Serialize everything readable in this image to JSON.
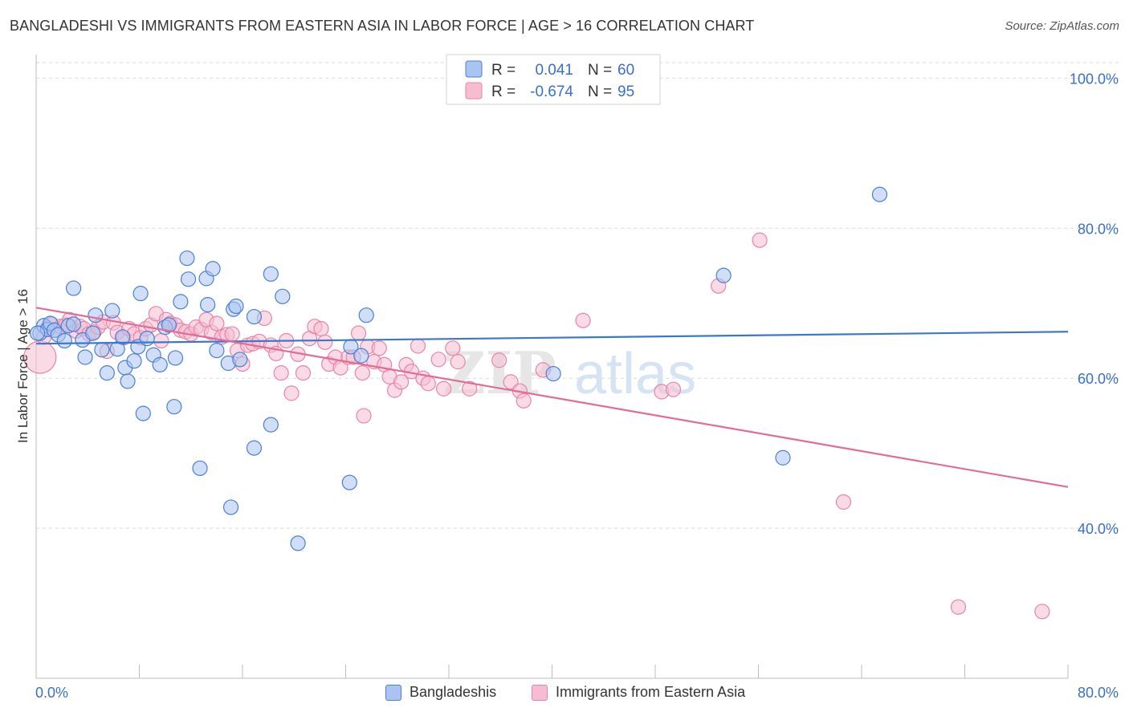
{
  "title": "BANGLADESHI VS IMMIGRANTS FROM EASTERN ASIA IN LABOR FORCE | AGE > 16 CORRELATION CHART",
  "source": "Source: ZipAtlas.com",
  "watermark": {
    "zip": "ZIP",
    "atlas": "atlas"
  },
  "colors": {
    "blue": "#4a7fd4",
    "blue_fill": "#a9c4f0",
    "blue_line": "#3a78d0",
    "pink": "#e884a6",
    "pink_fill": "#f6bdd0",
    "pink_line": "#e36b98",
    "axis_label": "#3a6fc9",
    "grid": "#d9d9d9",
    "text": "#333333"
  },
  "stats_legend": {
    "rows": [
      {
        "r_label": "R =",
        "r_value": "0.041",
        "n_label": "N =",
        "n_value": "60"
      },
      {
        "r_label": "R =",
        "r_value": "-0.674",
        "n_label": "N =",
        "n_value": "95"
      }
    ]
  },
  "bottom_legend": {
    "series1": "Bangladeshis",
    "series2": "Immigrants from Eastern Asia"
  },
  "chart_data": {
    "type": "scatter",
    "title": "BANGLADESHI VS IMMIGRANTS FROM EASTERN ASIA IN LABOR FORCE | AGE > 16 CORRELATION CHART",
    "xlabel": "",
    "ylabel": "In Labor Force | Age > 16",
    "xlim": [
      0,
      80
    ],
    "ylim": [
      20,
      104
    ],
    "x_tick_labels": [
      "0.0%",
      "80.0%"
    ],
    "y_ticks": [
      40,
      60,
      80,
      100
    ],
    "y_tick_labels": [
      "40.0%",
      "60.0%",
      "80.0%",
      "100.0%"
    ],
    "grid": true,
    "legend_position": "top-center",
    "series": [
      {
        "name": "Bangladeshis",
        "color": "#4a7fd4",
        "trend": {
          "x": [
            0,
            80
          ],
          "y": [
            64.6,
            66.2
          ]
        },
        "points": [
          [
            0.3,
            66
          ],
          [
            0.6,
            67
          ],
          [
            0.9,
            66.5
          ],
          [
            1.1,
            67.3
          ],
          [
            1.4,
            66.4
          ],
          [
            1.7,
            65.8
          ],
          [
            2.2,
            65
          ],
          [
            2.5,
            67
          ],
          [
            2.9,
            67.2
          ],
          [
            3.6,
            65.1
          ],
          [
            3.8,
            62.8
          ],
          [
            4.4,
            66
          ],
          [
            4.6,
            68.4
          ],
          [
            5.1,
            63.8
          ],
          [
            5.5,
            60.7
          ],
          [
            5.9,
            69
          ],
          [
            6.3,
            63.9
          ],
          [
            6.7,
            65.5
          ],
          [
            6.9,
            61.4
          ],
          [
            7.1,
            59.6
          ],
          [
            7.6,
            62.3
          ],
          [
            7.9,
            64.2
          ],
          [
            8.1,
            71.3
          ],
          [
            8.3,
            55.3
          ],
          [
            8.6,
            65.3
          ],
          [
            9.1,
            63.1
          ],
          [
            9.6,
            61.8
          ],
          [
            10,
            66.8
          ],
          [
            10.3,
            67.1
          ],
          [
            10.7,
            56.2
          ],
          [
            10.8,
            62.7
          ],
          [
            11.2,
            70.2
          ],
          [
            11.7,
            76
          ],
          [
            11.8,
            73.2
          ],
          [
            12.7,
            48
          ],
          [
            13.2,
            73.3
          ],
          [
            13.3,
            69.8
          ],
          [
            13.7,
            74.6
          ],
          [
            14,
            63.7
          ],
          [
            14.9,
            62
          ],
          [
            15.3,
            69.2
          ],
          [
            15.5,
            69.6
          ],
          [
            15.8,
            62.5
          ],
          [
            15.1,
            42.8
          ],
          [
            16.9,
            50.7
          ],
          [
            16.9,
            68.2
          ],
          [
            18.2,
            53.8
          ],
          [
            18.2,
            73.9
          ],
          [
            19.1,
            70.9
          ],
          [
            20.3,
            38
          ],
          [
            24.3,
            46.1
          ],
          [
            24.4,
            64.2
          ],
          [
            25.2,
            63
          ],
          [
            25.6,
            68.4
          ],
          [
            40.1,
            60.6
          ],
          [
            65.4,
            84.5
          ],
          [
            53.3,
            73.7
          ],
          [
            57.9,
            49.4
          ],
          [
            2.9,
            72
          ],
          [
            0.1,
            66
          ]
        ]
      },
      {
        "name": "Immigrants from Eastern Asia",
        "color": "#e884a6",
        "trend": {
          "x": [
            0,
            80
          ],
          "y": [
            69.4,
            45.5
          ]
        },
        "points": [
          [
            0.3,
            62.8
          ],
          [
            0.6,
            65.5
          ],
          [
            0.9,
            66.7
          ],
          [
            1.2,
            67.2
          ],
          [
            1.6,
            66.4
          ],
          [
            1.9,
            66.9
          ],
          [
            2.3,
            67.1
          ],
          [
            2.6,
            67.8
          ],
          [
            3.1,
            66.3
          ],
          [
            3.4,
            66.9
          ],
          [
            3.7,
            66.6
          ],
          [
            4.1,
            65.9
          ],
          [
            4.5,
            66.2
          ],
          [
            4.8,
            66.8
          ],
          [
            5.2,
            67.5
          ],
          [
            5.5,
            63.6
          ],
          [
            6,
            67.4
          ],
          [
            6.3,
            66.1
          ],
          [
            6.8,
            65.4
          ],
          [
            7.2,
            66.6
          ],
          [
            7.6,
            65.9
          ],
          [
            8.1,
            65.4
          ],
          [
            8.5,
            66.6
          ],
          [
            8.9,
            67.1
          ],
          [
            9.3,
            68.6
          ],
          [
            9.7,
            65
          ],
          [
            10.1,
            67.8
          ],
          [
            10.4,
            67.3
          ],
          [
            10.8,
            67.1
          ],
          [
            11.2,
            66.4
          ],
          [
            11.6,
            66.2
          ],
          [
            12,
            65.9
          ],
          [
            12.4,
            66.8
          ],
          [
            12.8,
            66.5
          ],
          [
            13.2,
            67.8
          ],
          [
            13.6,
            66.1
          ],
          [
            14,
            67.3
          ],
          [
            14.4,
            65.5
          ],
          [
            14.8,
            65.8
          ],
          [
            15.2,
            65.9
          ],
          [
            15.6,
            63.7
          ],
          [
            16,
            61.9
          ],
          [
            16.4,
            64.4
          ],
          [
            16.8,
            64.6
          ],
          [
            17.3,
            64.9
          ],
          [
            17.7,
            68
          ],
          [
            18.2,
            64.4
          ],
          [
            18.6,
            63.3
          ],
          [
            19,
            60.7
          ],
          [
            19.4,
            65
          ],
          [
            19.8,
            58
          ],
          [
            20.3,
            63.2
          ],
          [
            20.7,
            60.7
          ],
          [
            21.2,
            65.3
          ],
          [
            21.6,
            66.9
          ],
          [
            22.1,
            66.6
          ],
          [
            22.4,
            64.8
          ],
          [
            22.7,
            61.9
          ],
          [
            23.2,
            62.8
          ],
          [
            23.6,
            61.4
          ],
          [
            24.2,
            62.8
          ],
          [
            24.6,
            62.8
          ],
          [
            25,
            66
          ],
          [
            25.3,
            60.7
          ],
          [
            25.7,
            64.2
          ],
          [
            26.2,
            62.2
          ],
          [
            26.6,
            64
          ],
          [
            27,
            61.8
          ],
          [
            27.4,
            60.2
          ],
          [
            27.8,
            58.4
          ],
          [
            28.3,
            59.5
          ],
          [
            28.7,
            61.8
          ],
          [
            29.1,
            60.9
          ],
          [
            29.6,
            64.3
          ],
          [
            30,
            60
          ],
          [
            30.4,
            59.3
          ],
          [
            31.2,
            62.5
          ],
          [
            31.6,
            58.6
          ],
          [
            32.3,
            64
          ],
          [
            32.7,
            62.2
          ],
          [
            33.6,
            58.6
          ],
          [
            35.9,
            62.4
          ],
          [
            36.8,
            59.5
          ],
          [
            37.5,
            58.3
          ],
          [
            37.8,
            57
          ],
          [
            39.3,
            61.1
          ],
          [
            42.4,
            67.7
          ],
          [
            48.5,
            58.2
          ],
          [
            49.4,
            58.5
          ],
          [
            52.9,
            72.3
          ],
          [
            56.1,
            78.4
          ],
          [
            62.6,
            43.5
          ],
          [
            71.5,
            29.5
          ],
          [
            78,
            28.9
          ],
          [
            25.4,
            55
          ]
        ]
      }
    ],
    "note_r": [
      "0.041",
      "-0.674"
    ],
    "note_n": [
      "60",
      "95"
    ]
  }
}
